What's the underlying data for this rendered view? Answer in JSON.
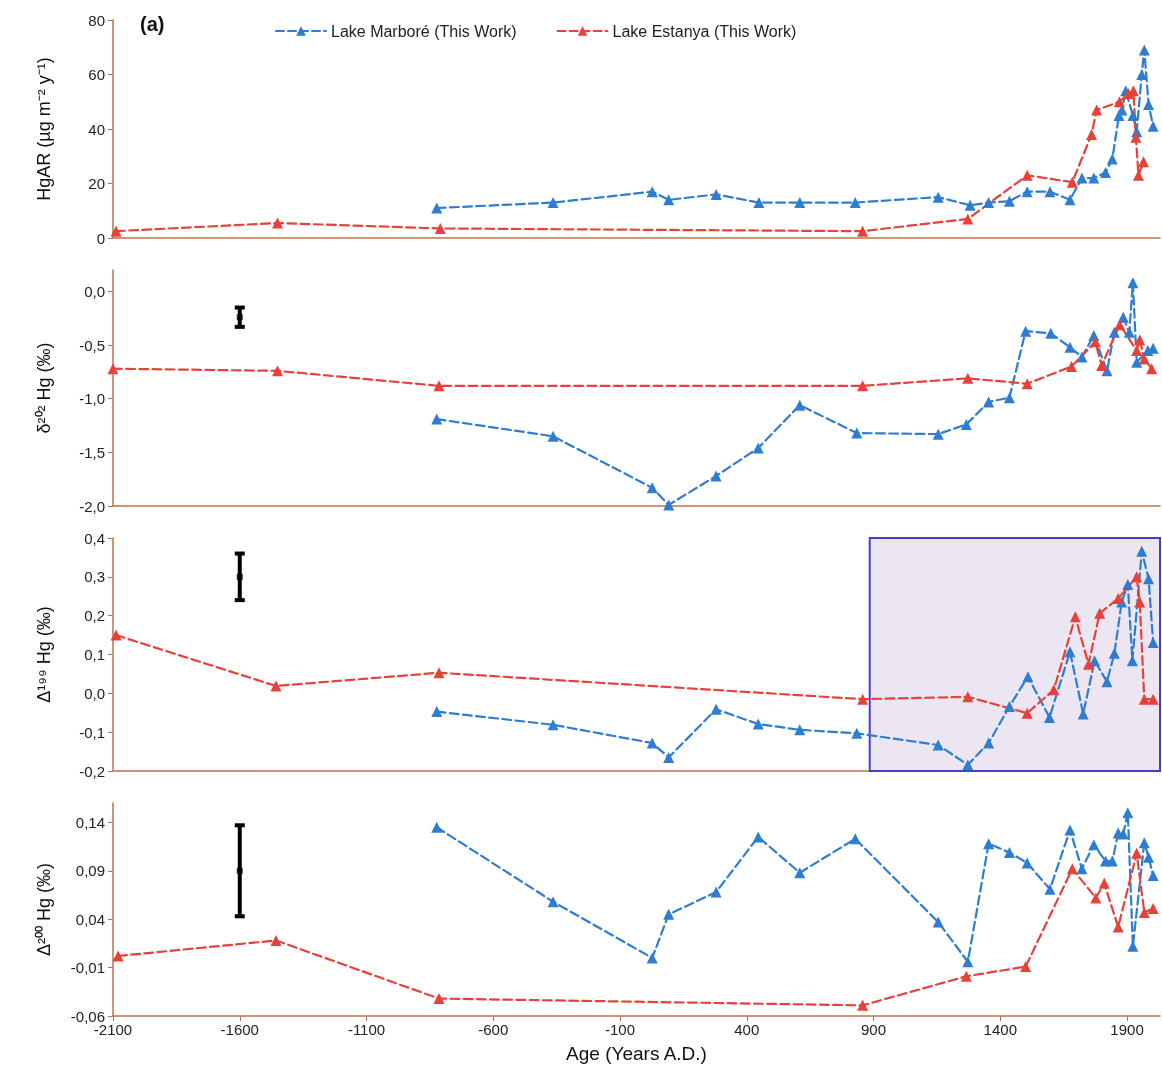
{
  "chart_data": [
    {
      "type": "line",
      "ylabel": "HgAR (µg m⁻² y⁻¹)",
      "annotations": [
        "(a)"
      ],
      "legend": "top",
      "marker": "triangle",
      "line_style": "dashed",
      "grid": false,
      "tick_labels": "y",
      "xlim": [
        -2100,
        2030
      ],
      "ylim": [
        0,
        80
      ],
      "yticks": [
        0,
        20,
        40,
        60,
        80
      ],
      "series": [
        {
          "name": "Lake Marboré (This Work)",
          "color": "#2e7dd1",
          "x": [
            -823,
            -364,
            27,
            92,
            279,
            448,
            609,
            828,
            1155,
            1281,
            1354,
            1436,
            1506,
            1596,
            1675,
            1722,
            1769,
            1815,
            1842,
            1868,
            1880,
            1895,
            1923,
            1938,
            1958,
            1968,
            1985,
            2003
          ],
          "values": [
            11,
            13,
            17,
            14,
            16,
            13,
            13,
            13,
            15,
            12,
            13,
            13.5,
            17,
            17,
            14,
            22,
            22,
            24,
            29,
            45,
            47,
            54,
            45,
            39,
            60,
            69,
            49,
            41
          ]
        },
        {
          "name": "Lake Estanya (This Work)",
          "color": "#e8413a",
          "x": [
            -2088,
            -1451,
            -809,
            857,
            1272,
            1506,
            1684,
            1760,
            1780,
            1870,
            1905,
            1925,
            1935,
            1945,
            1965
          ],
          "values": [
            2.5,
            5.5,
            3.5,
            2.5,
            7,
            23,
            20.5,
            38,
            47,
            50,
            53,
            54,
            37,
            23,
            28
          ]
        }
      ]
    },
    {
      "type": "line",
      "ylabel": "δ²⁰² Hg (‰)",
      "marker": "triangle",
      "line_style": "dashed",
      "grid": false,
      "tick_labels": "y",
      "xlim": [
        -2100,
        2030
      ],
      "ylim": [
        -2.0,
        0.2
      ],
      "yticks": [
        {
          "value": -2,
          "label": "-2,0"
        },
        {
          "value": -1.5,
          "label": "-1,5"
        },
        {
          "value": -1,
          "label": "-1,0"
        },
        {
          "value": -0.5,
          "label": "-0,5"
        },
        {
          "value": 0,
          "label": "0,0"
        }
      ],
      "series": [
        {
          "color": "#2e7dd1",
          "x": [
            -823,
            -364,
            27,
            92,
            279,
            445,
            609,
            834,
            1155,
            1266,
            1354,
            1436,
            1500,
            1599,
            1675,
            1722,
            1769,
            1821,
            1850,
            1885,
            1909,
            1923,
            1938,
            1982,
            2003
          ],
          "values": [
            -1.19,
            -1.35,
            -1.83,
            -1.99,
            -1.72,
            -1.46,
            -1.06,
            -1.32,
            -1.33,
            -1.24,
            -1.03,
            -0.99,
            -0.37,
            -0.39,
            -0.52,
            -0.61,
            -0.41,
            -0.74,
            -0.38,
            -0.24,
            -0.38,
            0.08,
            -0.66,
            -0.55,
            -0.53
          ]
        },
        {
          "color": "#e8413a",
          "x": [
            -2100,
            -1451,
            -814,
            857,
            1272,
            1506,
            1681,
            1775,
            1800,
            1871,
            1938,
            1950,
            1968,
            1997
          ],
          "values": [
            -0.72,
            -0.74,
            -0.88,
            -0.88,
            -0.81,
            -0.86,
            -0.7,
            -0.47,
            -0.69,
            -0.31,
            -0.55,
            -0.45,
            -0.63,
            -0.72
          ]
        },
        {
          "type": "scatter",
          "marker": "square",
          "color": "#000000",
          "x": [
            -1600
          ],
          "values": [
            -0.24
          ],
          "errors": [
            0.09
          ]
        }
      ]
    },
    {
      "type": "line",
      "ylabel": "Δ¹⁹⁹ Hg (‰)",
      "marker": "triangle",
      "line_style": "dashed",
      "grid": false,
      "tick_labels": "y",
      "xlim": [
        -2100,
        2030
      ],
      "ylim": [
        -0.2,
        0.4
      ],
      "yticks": [
        {
          "value": -0.2,
          "label": "-0,2"
        },
        {
          "value": -0.1,
          "label": "-0,1"
        },
        {
          "value": 0,
          "label": "0,0"
        },
        {
          "value": 0.1,
          "label": "0,1"
        },
        {
          "value": 0.2,
          "label": "0,2"
        },
        {
          "value": 0.3,
          "label": "0,3"
        },
        {
          "value": 0.4,
          "label": "0,4"
        }
      ],
      "bands": [
        {
          "axis": "x",
          "from": 885,
          "to": 2030,
          "color": "#ece6f2"
        }
      ],
      "series": [
        {
          "color": "#2e7dd1",
          "x": [
            -823,
            -364,
            27,
            92,
            279,
            445,
            609,
            834,
            1155,
            1272,
            1354,
            1436,
            1509,
            1594,
            1675,
            1727,
            1772,
            1821,
            1850,
            1879,
            1903,
            1921,
            1958,
            1985,
            2003
          ],
          "values": [
            -0.047,
            -0.081,
            -0.128,
            -0.165,
            -0.041,
            -0.079,
            -0.094,
            -0.103,
            -0.133,
            -0.184,
            -0.128,
            -0.034,
            0.043,
            -0.062,
            0.107,
            -0.053,
            0.084,
            0.03,
            0.103,
            0.235,
            0.28,
            0.084,
            0.366,
            0.295,
            0.131
          ]
        },
        {
          "color": "#e8413a",
          "x": [
            -2088,
            -1457,
            -814,
            857,
            1272,
            1506,
            1611,
            1696,
            1748,
            1792,
            1865,
            1938,
            1950,
            1968,
            2003
          ],
          "values": [
            0.15,
            0.019,
            0.053,
            -0.015,
            -0.009,
            -0.051,
            0.009,
            0.197,
            0.075,
            0.206,
            0.244,
            0.3,
            0.235,
            -0.015,
            -0.015
          ]
        },
        {
          "type": "scatter",
          "marker": "square",
          "color": "#000000",
          "x": [
            -1600
          ],
          "values": [
            0.3
          ],
          "errors": [
            0.06
          ]
        }
      ]
    },
    {
      "type": "line",
      "xlabel": "Age (Years A.D.)",
      "ylabel": "Δ²⁰⁰ Hg (‰)",
      "marker": "triangle",
      "line_style": "dashed",
      "grid": false,
      "xlim": [
        -2100,
        2030
      ],
      "xticks": [
        -2100,
        -1600,
        -1100,
        -600,
        -100,
        400,
        900,
        1400,
        1900
      ],
      "ylim": [
        -0.06,
        0.16
      ],
      "yticks": [
        {
          "value": -0.06,
          "label": "-0,06"
        },
        {
          "value": -0.01,
          "label": "-0,01"
        },
        {
          "value": 0.04,
          "label": "0,04"
        },
        {
          "value": 0.09,
          "label": "0,09"
        },
        {
          "value": 0.14,
          "label": "0,14"
        }
      ],
      "series": [
        {
          "color": "#2e7dd1",
          "x": [
            -823,
            -364,
            27,
            92,
            279,
            445,
            609,
            828,
            1155,
            1272,
            1354,
            1436,
            1506,
            1596,
            1675,
            1722,
            1769,
            1815,
            1842,
            1865,
            1885,
            1903,
            1923,
            1968,
            1985,
            2003
          ],
          "values": [
            0.135,
            0.058,
            0.0,
            0.045,
            0.068,
            0.125,
            0.088,
            0.123,
            0.037,
            -0.004,
            0.118,
            0.109,
            0.098,
            0.071,
            0.132,
            0.092,
            0.117,
            0.1,
            0.1,
            0.129,
            0.128,
            0.15,
            0.012,
            0.119,
            0.104,
            0.085
          ]
        },
        {
          "color": "#e8413a",
          "x": [
            -2080,
            -1457,
            -814,
            857,
            1266,
            1500,
            1684,
            1777,
            1810,
            1865,
            1938,
            1968,
            2003
          ],
          "values": [
            0.002,
            0.018,
            -0.042,
            -0.049,
            -0.019,
            -0.009,
            0.092,
            0.062,
            0.077,
            0.032,
            0.108,
            0.047,
            0.051
          ]
        },
        {
          "type": "scatter",
          "marker": "square",
          "color": "#000000",
          "x": [
            -1600
          ],
          "values": [
            0.09
          ],
          "errors": [
            0.047
          ]
        }
      ]
    }
  ]
}
